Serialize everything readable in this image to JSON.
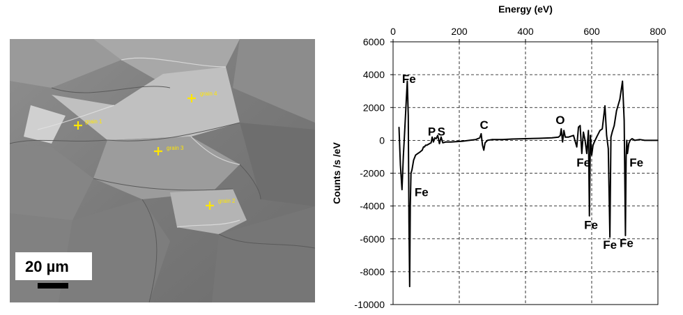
{
  "micrograph": {
    "marker_color": "#ffe600",
    "grains": [
      {
        "label": "grain 1"
      },
      {
        "label": "grain 4"
      },
      {
        "label": "grain 3"
      },
      {
        "label": "grain 2"
      }
    ],
    "scale_bar": {
      "label": "20 µm"
    }
  },
  "chart_data": {
    "type": "line",
    "title": "",
    "xlabel": "Energy (eV)",
    "ylabel": "Counts /s /eV",
    "x_axis_position": "top",
    "xlim": [
      0,
      800
    ],
    "ylim": [
      -10000,
      6000
    ],
    "xticks": [
      0,
      200,
      400,
      600,
      800
    ],
    "yticks": [
      6000,
      4000,
      2000,
      0,
      -2000,
      -4000,
      -6000,
      -8000,
      -10000
    ],
    "grid": true,
    "series": [
      {
        "color": "#000000",
        "x": [
          18,
          22,
          27,
          31,
          35,
          40,
          43,
          46,
          48,
          50,
          52,
          54,
          57,
          62,
          68,
          75,
          82,
          88,
          92,
          95,
          98,
          102,
          110,
          115,
          118,
          122,
          126,
          130,
          135,
          140,
          145,
          150,
          160,
          175,
          190,
          210,
          230,
          250,
          262,
          266,
          270,
          274,
          278,
          285,
          300,
          330,
          360,
          400,
          440,
          480,
          500,
          505,
          508,
          512,
          516,
          520,
          530,
          545,
          555,
          560,
          565,
          570,
          575,
          580,
          585,
          590,
          593,
          596,
          600,
          604,
          608,
          615,
          625,
          632,
          640,
          645,
          650,
          655,
          658,
          662,
          668,
          675,
          685,
          693,
          698,
          702,
          704,
          706,
          708,
          712,
          716,
          722,
          730,
          745,
          760,
          780,
          800
        ],
        "y": [
          800,
          -1500,
          -3000,
          -1000,
          500,
          2500,
          3600,
          1500,
          -5000,
          -8900,
          -4000,
          -2000,
          -1800,
          -1200,
          -900,
          -800,
          -700,
          -600,
          -400,
          -400,
          -300,
          -300,
          -200,
          -150,
          200,
          -100,
          150,
          100,
          300,
          -200,
          200,
          -150,
          -100,
          -100,
          -80,
          -50,
          0,
          50,
          150,
          400,
          -300,
          -600,
          -150,
          0,
          50,
          50,
          80,
          100,
          120,
          150,
          200,
          300,
          700,
          -100,
          600,
          200,
          200,
          300,
          -400,
          800,
          900,
          -800,
          500,
          0,
          -800,
          600,
          -4600,
          300,
          -900,
          -300,
          -100,
          200,
          600,
          700,
          2100,
          300,
          -500,
          -5900,
          200,
          500,
          900,
          1800,
          2500,
          3600,
          1200,
          -5800,
          -1000,
          0,
          -800,
          -200,
          0,
          100,
          0,
          50,
          0,
          0,
          0
        ]
      }
    ],
    "annotations": [
      {
        "text": "Fe",
        "x": 48,
        "y": 3500
      },
      {
        "text": "Fe",
        "x": 86,
        "y": -3400
      },
      {
        "text": "P",
        "x": 117,
        "y": 300
      },
      {
        "text": "S",
        "x": 146,
        "y": 300
      },
      {
        "text": "C",
        "x": 275,
        "y": 700
      },
      {
        "text": "O",
        "x": 505,
        "y": 1000
      },
      {
        "text": "Fe",
        "x": 575,
        "y": -1600
      },
      {
        "text": "Fe",
        "x": 598,
        "y": -5400
      },
      {
        "text": "Fe",
        "x": 655,
        "y": -6600
      },
      {
        "text": "Fe",
        "x": 705,
        "y": -6500
      },
      {
        "text": "Fe",
        "x": 735,
        "y": -1600
      }
    ]
  }
}
